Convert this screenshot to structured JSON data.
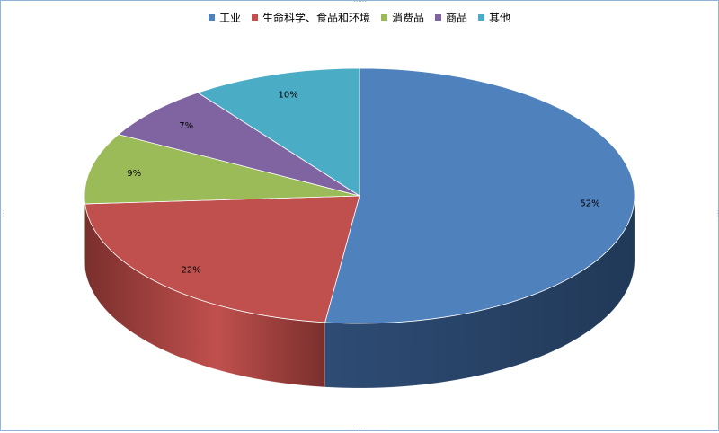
{
  "chart_data": {
    "type": "pie",
    "variant": "3d",
    "categories": [
      "工业",
      "生命科学、食品和环境",
      "消费品",
      "商品",
      "其他"
    ],
    "values": [
      52,
      22,
      9,
      7,
      10
    ],
    "value_labels": [
      "52%",
      "22%",
      "9%",
      "7%",
      "10%"
    ],
    "colors": [
      "#4f81bd",
      "#c0504d",
      "#9bbb59",
      "#8064a2",
      "#4bacc6"
    ],
    "side_colors": [
      "#213958",
      "#7a2f2d",
      "#5f7a32",
      "#4d3d66",
      "#2e6e80"
    ],
    "legend": "top",
    "start_angle_deg": 0
  }
}
